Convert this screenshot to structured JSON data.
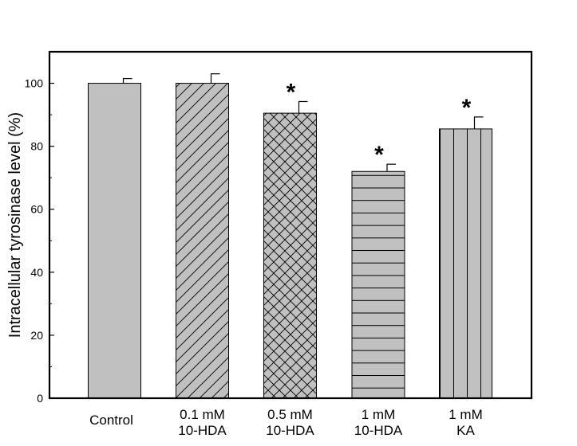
{
  "chart_data": {
    "type": "bar",
    "title": "",
    "xlabel": "",
    "ylabel": "Intracellular tyrosinase level (%)",
    "ylim": [
      0,
      110
    ],
    "yticks": [
      0,
      20,
      40,
      60,
      80,
      100
    ],
    "categories": [
      [
        "Control"
      ],
      [
        "0.1 mM",
        "10-HDA"
      ],
      [
        "0.5 mM",
        "10-HDA"
      ],
      [
        "1 mM",
        "10-HDA"
      ],
      [
        "1 mM",
        "KA"
      ]
    ],
    "values": [
      100,
      100,
      90.5,
      72,
      85.5
    ],
    "errors": [
      1.5,
      3.0,
      3.7,
      2.3,
      3.8
    ],
    "significance": [
      "",
      "",
      "*",
      "*",
      "*"
    ],
    "patterns": [
      "solid",
      "diagonal",
      "crosshatch",
      "horizontal",
      "vertical"
    ],
    "bar_fill": "#c0c0c0",
    "line_color": "#000000"
  }
}
